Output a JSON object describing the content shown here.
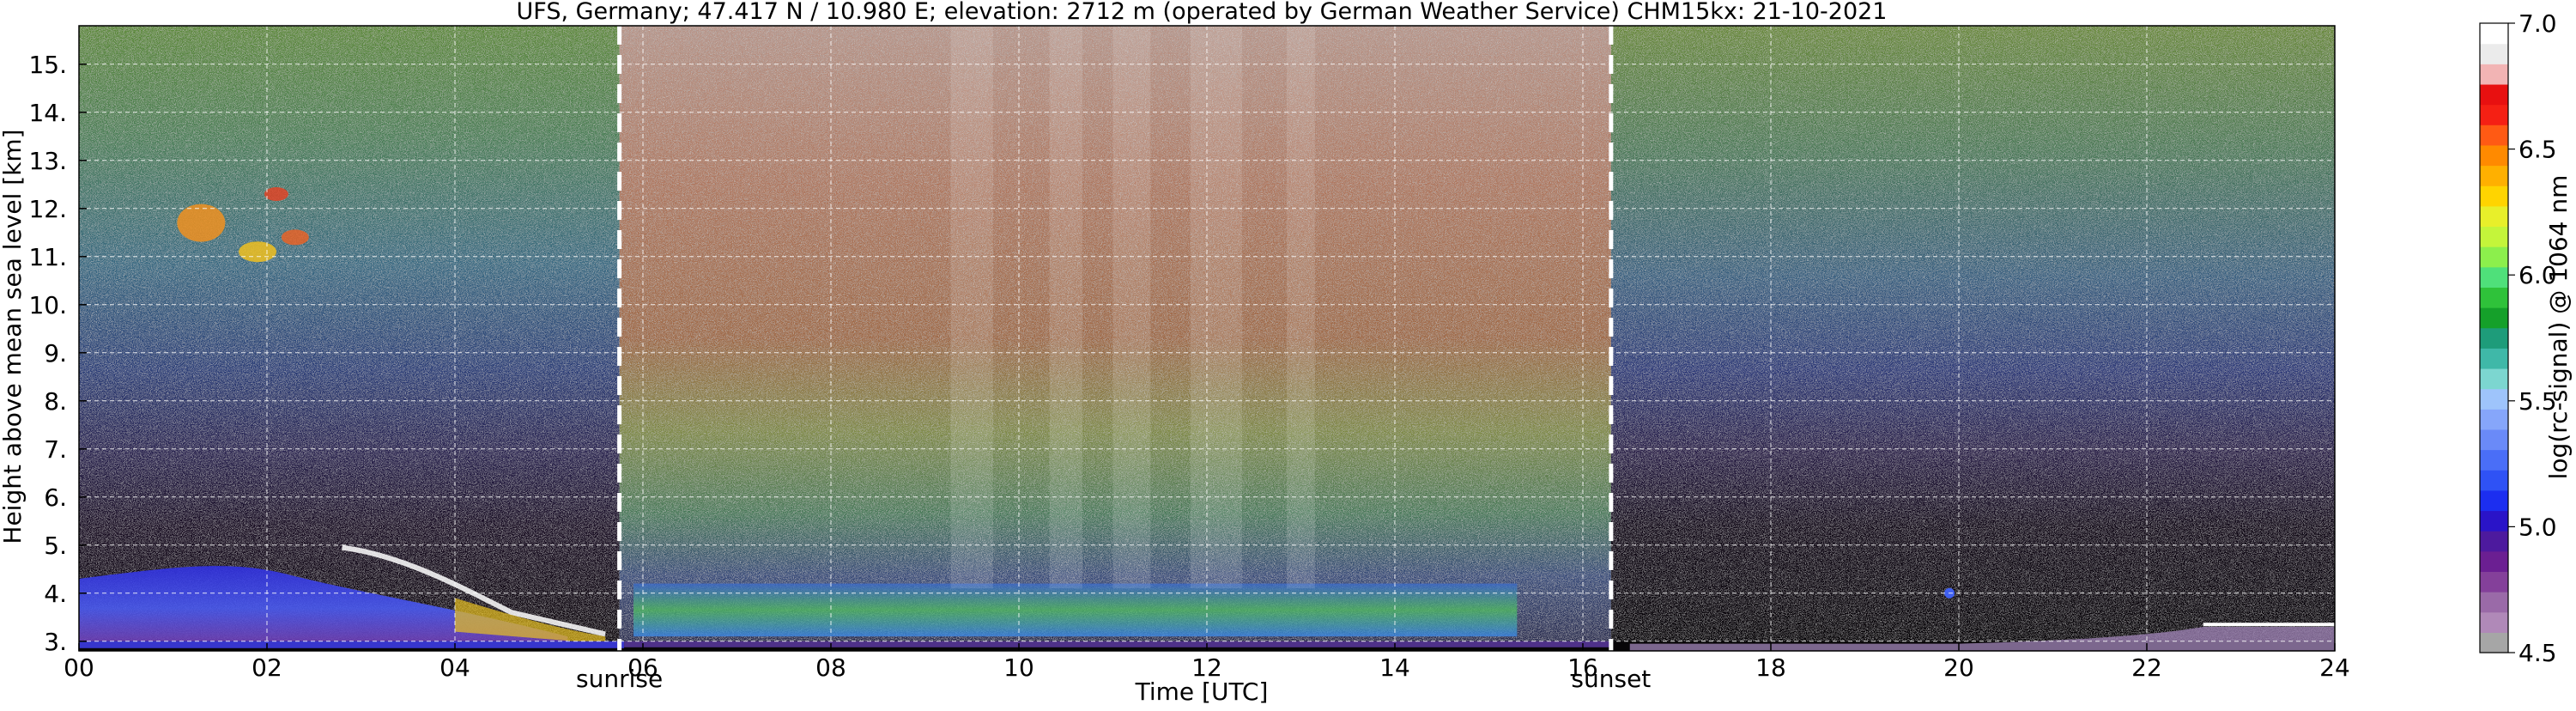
{
  "chart_data": {
    "type": "heatmap",
    "title": "UFS, Germany; 47.417 N / 10.980 E; elevation: 2712 m  (operated by German Weather Service)    CHM15kx: 21-10-2021",
    "xlabel": "Time [UTC]",
    "ylabel": "Height above mean sea level [km]",
    "xlim": [
      0,
      24
    ],
    "ylim": [
      2.8,
      15.8
    ],
    "xticks": [
      0,
      2,
      4,
      6,
      8,
      10,
      12,
      14,
      16,
      18,
      20,
      22,
      24
    ],
    "xtick_labels": [
      "00",
      "02",
      "04",
      "06",
      "08",
      "10",
      "12",
      "14",
      "16",
      "18",
      "20",
      "22",
      "24"
    ],
    "yticks": [
      3,
      4,
      5,
      6,
      7,
      8,
      9,
      10,
      11,
      12,
      13,
      14,
      15
    ],
    "ytick_labels": [
      "3.",
      "4.",
      "5.",
      "6.",
      "7.",
      "8.",
      "9.",
      "10.",
      "11.",
      "12.",
      "13.",
      "14.",
      "15."
    ],
    "grid": true,
    "annotations": [
      {
        "text": "sunrise",
        "x": 5.75
      },
      {
        "text": "sunset",
        "x": 16.3
      }
    ],
    "colorbar": {
      "label": "log(rc-signal) @ 1064 nm",
      "range": [
        4.5,
        7.0
      ],
      "ticks": [
        4.5,
        5.0,
        5.5,
        6.0,
        6.5,
        7.0
      ],
      "tick_labels": [
        "4.5",
        "5.0",
        "5.5",
        "6.0",
        "6.5",
        "7.0"
      ],
      "colors": [
        "#a6a6a6",
        "#b089b8",
        "#9a6aa8",
        "#84409a",
        "#6b1f92",
        "#4d1a9e",
        "#2a14c8",
        "#1c2ef0",
        "#2f52f5",
        "#4a6ef7",
        "#6a8af8",
        "#86a6fa",
        "#9ec4fb",
        "#7cd6d0",
        "#3fb8a8",
        "#1e9c7a",
        "#15a02a",
        "#2fc23a",
        "#4fe07a",
        "#8cef4c",
        "#c4f53a",
        "#e8ef2a",
        "#ffd400",
        "#ffb000",
        "#ff8a00",
        "#ff5a14",
        "#f52014",
        "#e81010",
        "#f2b4b4",
        "#ebebeb",
        "#ffffff"
      ]
    }
  }
}
